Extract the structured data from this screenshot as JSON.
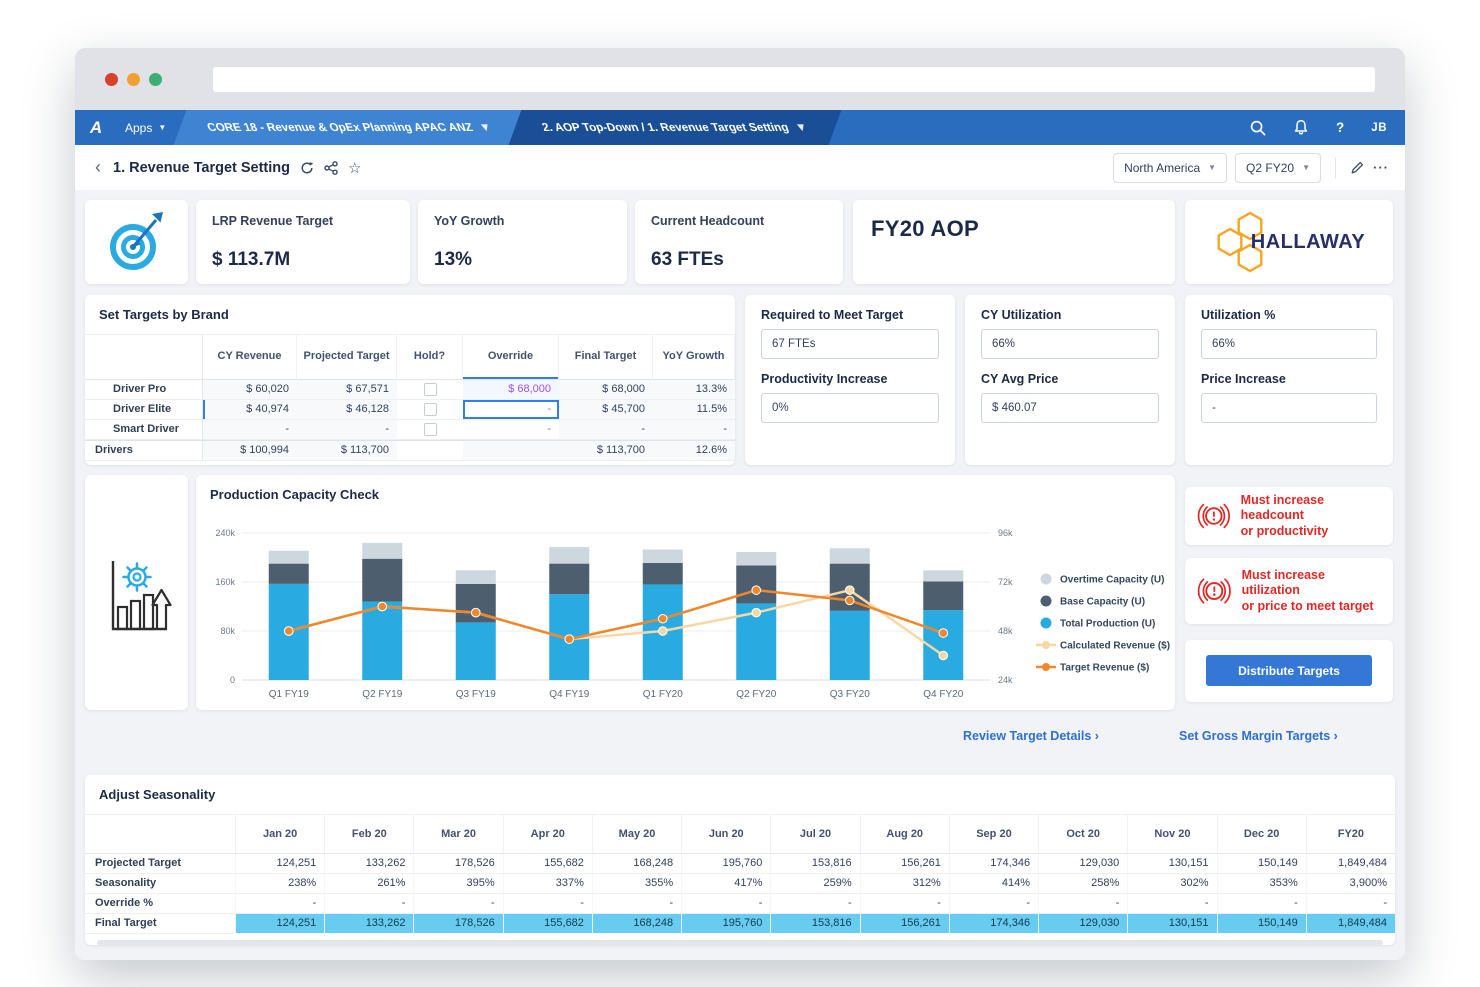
{
  "browser": {
    "url": ""
  },
  "nav": {
    "apps_label": "Apps",
    "model_tab": "CORE 18 - Revenue & OpEx Planning APAC ANZ",
    "page_tab": "2. AOP Top-Down / 1. Revenue Target Setting",
    "help_label": "?",
    "user_initials": "JB"
  },
  "header": {
    "back": "‹",
    "title": "1. Revenue Target Setting",
    "region_selector": "North America",
    "period_selector": "Q2 FY20",
    "more_label": "···"
  },
  "kpis": {
    "lrp": {
      "label": "LRP Revenue Target",
      "value": "$ 113.7M"
    },
    "yoy": {
      "label": "YoY Growth",
      "value": "13%"
    },
    "headcount": {
      "label": "Current Headcount",
      "value": "63 FTEs"
    }
  },
  "aop_title": "FY20 AOP",
  "brand": {
    "name": "HALLAWAY"
  },
  "targets": {
    "title": "Set Targets by Brand",
    "columns": [
      "CY Revenue",
      "Projected Target",
      "Hold?",
      "Override",
      "Final Target",
      "YoY Growth"
    ],
    "rows": [
      {
        "name": "Driver Pro",
        "cy_revenue": "$ 60,020",
        "projected": "$ 67,571",
        "override": "$ 68,000",
        "final": "$ 68,000",
        "yoy": "13.3%"
      },
      {
        "name": "Driver Elite",
        "cy_revenue": "$ 40,974",
        "projected": "$ 46,128",
        "override": "-",
        "final": "$ 45,700",
        "yoy": "11.5%"
      },
      {
        "name": "Smart Driver",
        "cy_revenue": "-",
        "projected": "-",
        "override": "-",
        "final": "-",
        "yoy": "-"
      },
      {
        "name": "Drivers",
        "cy_revenue": "$ 100,994",
        "projected": "$ 113,700",
        "override": "",
        "final": "$ 113,700",
        "yoy": "12.6%"
      }
    ]
  },
  "fte_panel": {
    "req_label": "Required to Meet Target",
    "req_value": "67 FTEs",
    "prod_label": "Productivity Increase",
    "prod_value": "0%"
  },
  "cy_panel": {
    "util_label": "CY Utilization",
    "util_value": "66%",
    "price_label": "CY Avg Price",
    "price_value": "$ 460.07"
  },
  "adjust_panel": {
    "util_label": "Utilization %",
    "util_value": "66%",
    "price_label": "Price Increase",
    "price_value": "-"
  },
  "chart_data": {
    "type": "bar",
    "title": "Production Capacity Check",
    "categories": [
      "Q1 FY19",
      "Q2 FY19",
      "Q3 FY19",
      "Q4 FY19",
      "Q1 FY20",
      "Q2 FY20",
      "Q3 FY20",
      "Q4 FY20"
    ],
    "left_axis": {
      "ticks": [
        "0",
        "80k",
        "160k",
        "240k"
      ],
      "range": [
        0,
        240000
      ]
    },
    "right_axis": {
      "ticks": [
        "24k",
        "48k",
        "72k",
        "96k"
      ],
      "range": [
        24000,
        96000
      ]
    },
    "bar_series": [
      {
        "name": "Total Production (U)",
        "color": "#29abe2",
        "values": [
          157000,
          128000,
          94000,
          140000,
          156000,
          125000,
          113000,
          114000
        ]
      },
      {
        "name": "Base Capacity (U)",
        "color": "#4d5f6e",
        "values": [
          33000,
          70000,
          63000,
          50000,
          35000,
          62000,
          77000,
          47000
        ]
      },
      {
        "name": "Overtime Capacity (U)",
        "color": "#cdd7de",
        "values": [
          21000,
          26000,
          22000,
          27000,
          22000,
          22000,
          25000,
          18000
        ]
      }
    ],
    "line_series": [
      {
        "name": "Calculated Revenue ($)",
        "color": "#f9d7a4",
        "axis": "right",
        "values": [
          48000,
          60000,
          57000,
          44000,
          48000,
          57000,
          68000,
          36000
        ]
      },
      {
        "name": "Target Revenue ($)",
        "color": "#f0872a",
        "axis": "right",
        "values": [
          48000,
          60000,
          57000,
          44000,
          54000,
          68000,
          63000,
          47000
        ]
      }
    ],
    "legend_position": "right",
    "grid": true
  },
  "warnings": [
    {
      "line1": "Must increase headcount",
      "line2": "or productivity"
    },
    {
      "line1": "Must increase utilization",
      "line2": "or price to meet target"
    }
  ],
  "actions": {
    "distribute": "Distribute Targets"
  },
  "links": {
    "review": "Review Target Details ›",
    "margin": "Set Gross Margin Targets ›"
  },
  "seasonality": {
    "title": "Adjust Seasonality",
    "columns": [
      "Jan 20",
      "Feb 20",
      "Mar 20",
      "Apr 20",
      "May 20",
      "Jun 20",
      "Jul 20",
      "Aug 20",
      "Sep 20",
      "Oct 20",
      "Nov 20",
      "Dec 20",
      "FY20"
    ],
    "rows": [
      {
        "name": "Projected Target",
        "highlight": false,
        "values": [
          "124,251",
          "133,262",
          "178,526",
          "155,682",
          "168,248",
          "195,760",
          "153,816",
          "156,261",
          "174,346",
          "129,030",
          "130,151",
          "150,149",
          "1,849,484"
        ]
      },
      {
        "name": "Seasonality",
        "highlight": false,
        "values": [
          "238%",
          "261%",
          "395%",
          "337%",
          "355%",
          "417%",
          "259%",
          "312%",
          "414%",
          "258%",
          "302%",
          "353%",
          "3,900%"
        ]
      },
      {
        "name": "Override %",
        "highlight": false,
        "values": [
          "-",
          "-",
          "-",
          "-",
          "-",
          "-",
          "-",
          "-",
          "-",
          "-",
          "-",
          "-",
          "-"
        ]
      },
      {
        "name": "Final Target",
        "highlight": true,
        "values": [
          "124,251",
          "133,262",
          "178,526",
          "155,682",
          "168,248",
          "195,760",
          "153,816",
          "156,261",
          "174,346",
          "129,030",
          "130,151",
          "150,149",
          "1,849,484"
        ]
      }
    ]
  },
  "colors": {
    "accent_blue": "#3577d4",
    "nav_blue": "#2a6cbe",
    "warning_red": "#e32726",
    "purple": "#a24fe0",
    "highlight_row": "#68cbf0",
    "brand_orange": "#f5a623",
    "brand_navy": "#282e68"
  }
}
